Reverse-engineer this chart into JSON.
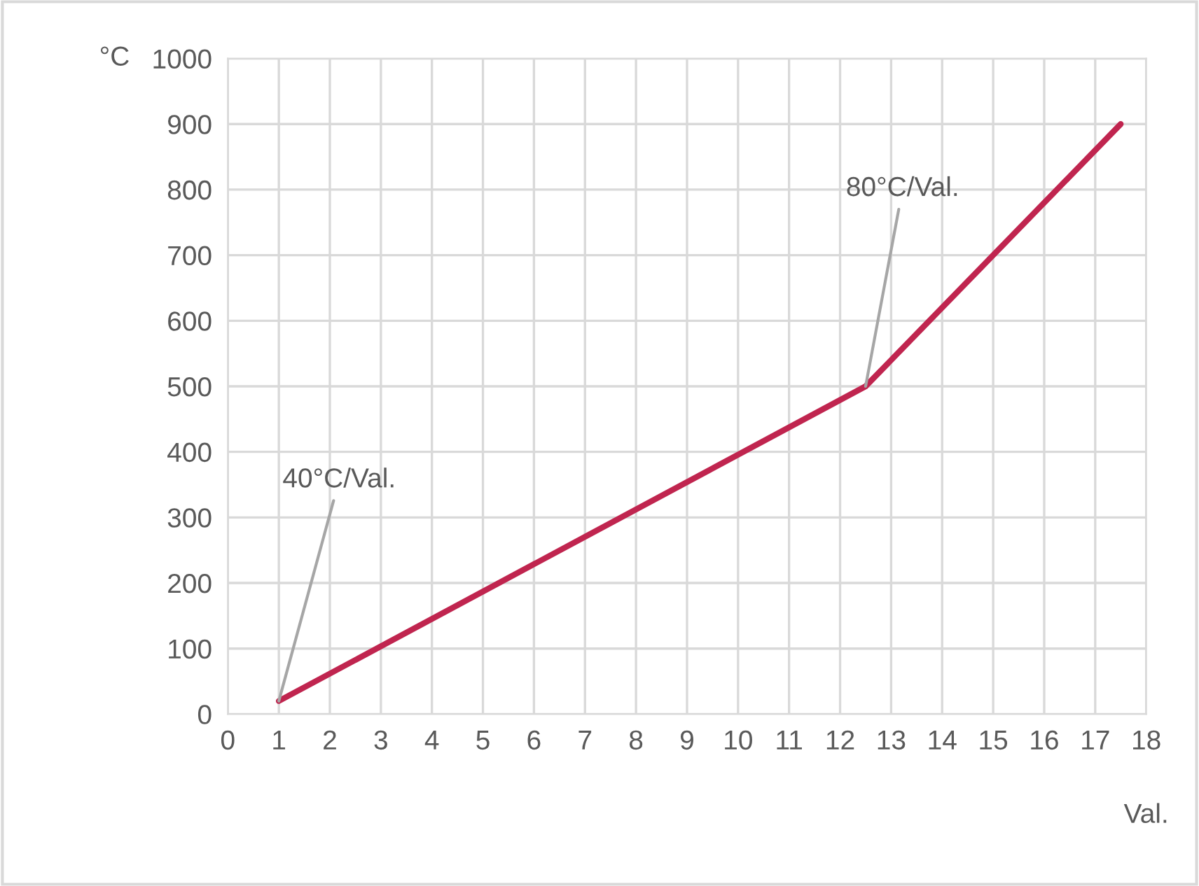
{
  "chart_data": {
    "type": "line",
    "xlabel": "Val.",
    "ylabel": "°C",
    "x": [
      1,
      12.5,
      17.5
    ],
    "series": [
      {
        "color": "#c0254f",
        "values": [
          20,
          500,
          900
        ]
      }
    ],
    "xlim": [
      0,
      18
    ],
    "xticks": [
      0,
      1,
      2,
      3,
      4,
      5,
      6,
      7,
      8,
      9,
      10,
      11,
      12,
      13,
      14,
      15,
      16,
      17,
      18
    ],
    "ylim": [
      0,
      1000
    ],
    "yticks": [
      0,
      100,
      200,
      300,
      400,
      500,
      600,
      700,
      800,
      900,
      1000
    ],
    "grid": true,
    "marker": "none",
    "line_style": "solid",
    "annotations": [
      {
        "text": "40°C/Val.",
        "x": 1,
        "y": 20
      },
      {
        "text": "80°C/Val.",
        "x": 12.5,
        "y": 500
      }
    ]
  }
}
